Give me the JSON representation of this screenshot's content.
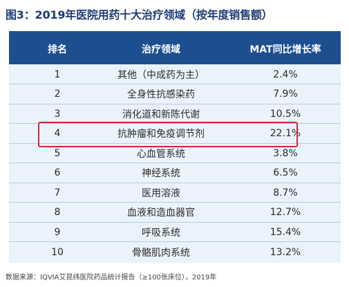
{
  "title": "图3：2019年医院用药十大治疗领域（按年度销售额）",
  "table": {
    "headers": {
      "rank": "排名",
      "area": "治疗领域",
      "mat": "MAT同比增长率"
    },
    "rows": [
      {
        "rank": "1",
        "area": "其他（中成药为主）",
        "mat": "2.4%"
      },
      {
        "rank": "2",
        "area": "全身性抗感染药",
        "mat": "7.9%"
      },
      {
        "rank": "3",
        "area": "消化道和新陈代谢",
        "mat": "10.5%"
      },
      {
        "rank": "4",
        "area": "抗肿瘤和免疫调节剂",
        "mat": "22.1%"
      },
      {
        "rank": "5",
        "area": "心血管系统",
        "mat": "3.8%"
      },
      {
        "rank": "6",
        "area": "神经系统",
        "mat": "6.5%"
      },
      {
        "rank": "7",
        "area": "医用溶液",
        "mat": "8.7%"
      },
      {
        "rank": "8",
        "area": "血液和造血器官",
        "mat": "12.7%"
      },
      {
        "rank": "9",
        "area": "呼吸系统",
        "mat": "15.4%"
      },
      {
        "rank": "10",
        "area": "骨骼肌肉系统",
        "mat": "13.2%"
      }
    ]
  },
  "highlighted_rank": "4",
  "footnote": "数据来源：IQVIA艾昆纬医院药品统计报告（≥100张床位），2019年",
  "colors": {
    "header_bg": "#1d4e8f",
    "panel_bg": "#eaf3fb",
    "highlight": "#d3282d",
    "title": "#1f3d75"
  }
}
